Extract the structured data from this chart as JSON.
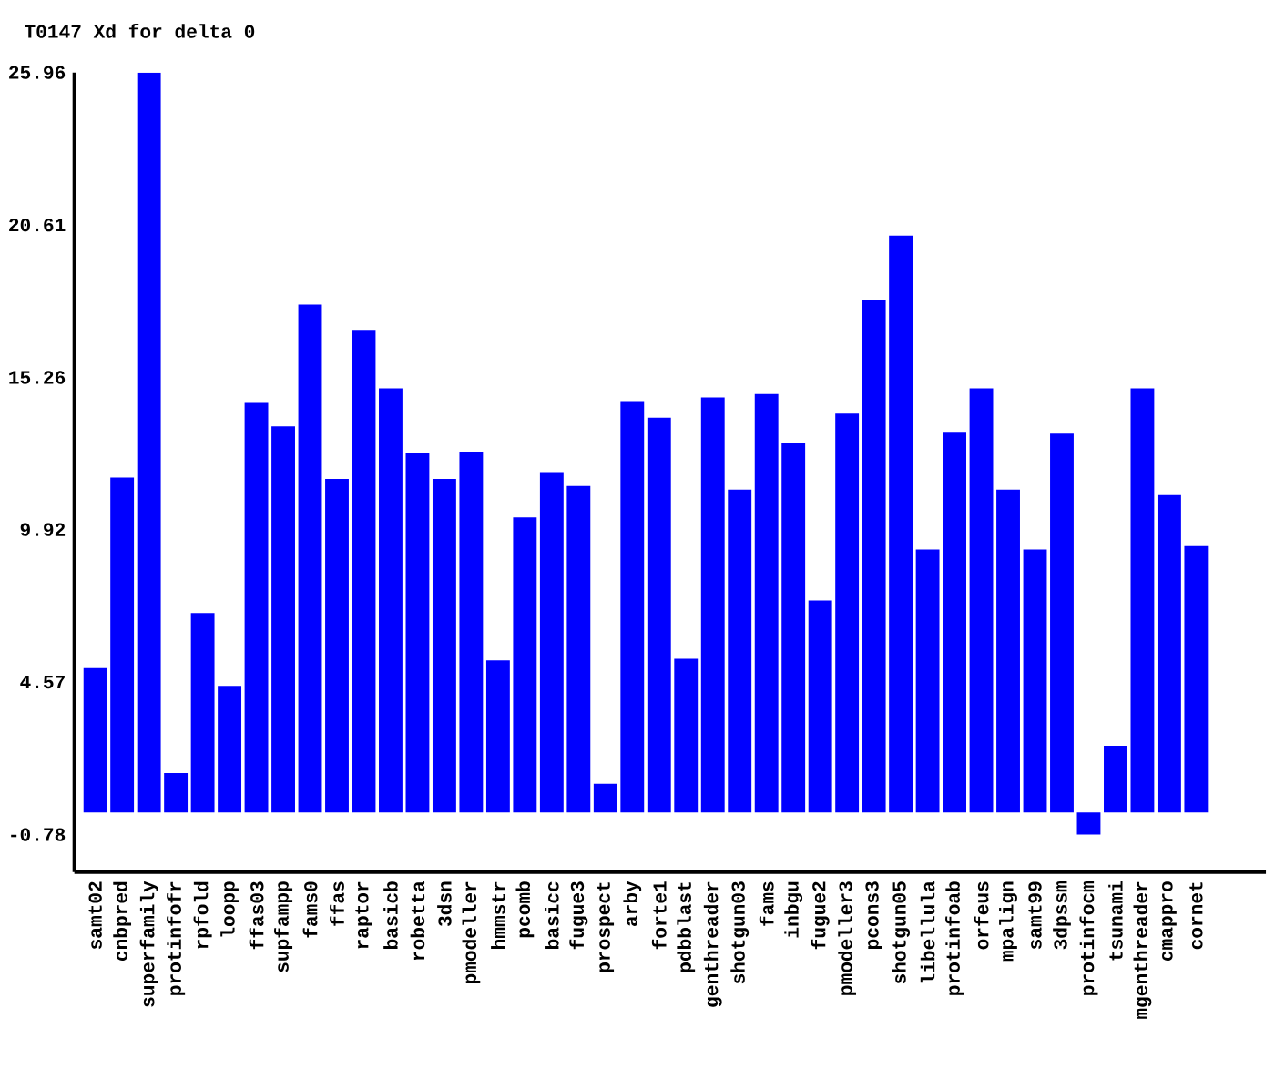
{
  "chart_data": {
    "type": "bar",
    "title": "T0147 Xd for delta 0",
    "categories": [
      "samt02",
      "cnbpred",
      "superfamily",
      "protinfofr",
      "rpfold",
      "loopp",
      "ffas03",
      "supfampp",
      "fams0",
      "ffas",
      "raptor",
      "basicb",
      "robetta",
      "3dsn",
      "pmodeller",
      "hmmstr",
      "pcomb",
      "basicc",
      "fugue3",
      "prospect",
      "arby",
      "forte1",
      "pdbblast",
      "genthreader",
      "shotgun03",
      "fams",
      "inbgu",
      "fugue2",
      "pmodeller3",
      "pcons3",
      "shotgun05",
      "libellula",
      "protinfoab",
      "orfeus",
      "mpalign",
      "samt99",
      "3dpssm",
      "protinfocm",
      "tsunami",
      "mgenthreader",
      "cmappro",
      "cornet"
    ],
    "values": [
      5.06,
      11.75,
      25.96,
      1.38,
      6.99,
      4.44,
      14.37,
      13.54,
      17.82,
      11.7,
      16.93,
      14.88,
      12.59,
      11.7,
      12.66,
      5.33,
      10.35,
      11.94,
      11.45,
      1.0,
      14.43,
      13.85,
      5.39,
      14.56,
      11.32,
      14.68,
      12.96,
      7.43,
      13.99,
      17.98,
      20.24,
      9.22,
      13.35,
      14.88,
      11.32,
      9.22,
      13.29,
      -0.78,
      2.34,
      14.88,
      11.13,
      9.34
    ],
    "color": "#0000ff",
    "ylim": [
      -2.1,
      25.96
    ],
    "yticks": [
      -0.78,
      4.57,
      9.92,
      15.26,
      20.61,
      25.96
    ]
  }
}
